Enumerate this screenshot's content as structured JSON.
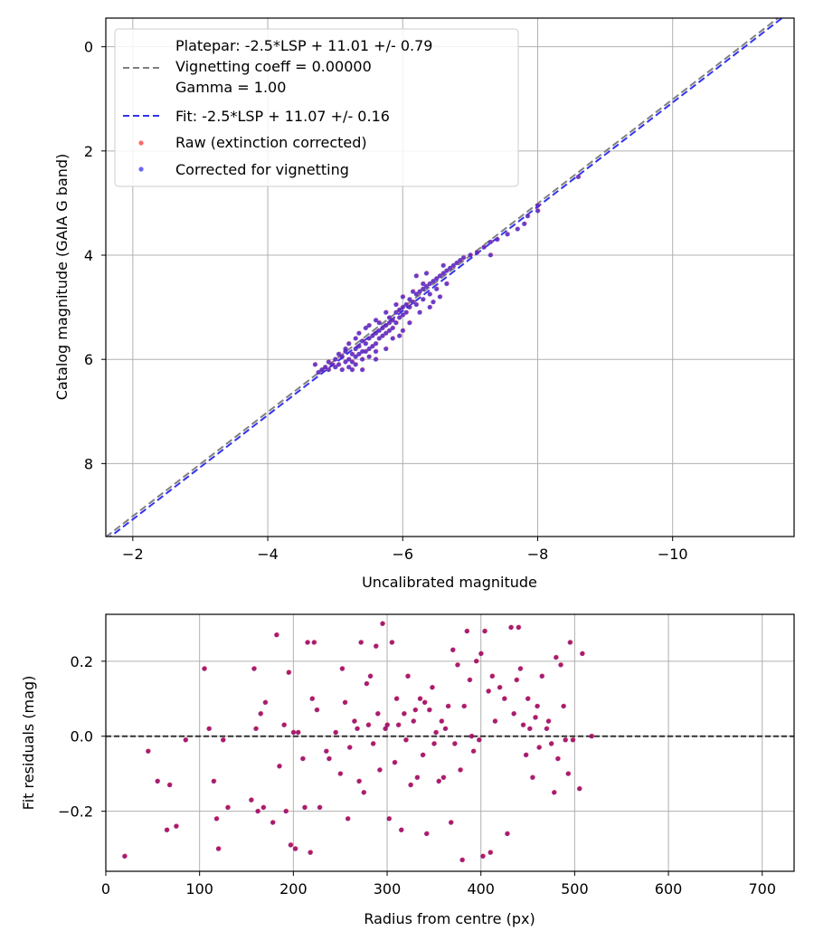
{
  "chart_data": [
    {
      "type": "scatter",
      "xlabel": "Uncalibrated magnitude",
      "ylabel": "Catalog magnitude (GAIA G band)",
      "xlim": [
        -1.6,
        -11.8
      ],
      "ylim": [
        9.4,
        -0.55
      ],
      "xticks": [
        -2,
        -4,
        -6,
        -8,
        -10
      ],
      "xtick_labels": [
        "−2",
        "−4",
        "−6",
        "−8",
        "−10"
      ],
      "yticks": [
        0,
        2,
        4,
        6,
        8
      ],
      "ytick_labels": [
        "0",
        "2",
        "4",
        "6",
        "8"
      ],
      "grid": true,
      "legend_position": "top-left",
      "legend": [
        {
          "kind": "line",
          "color": "#808080",
          "label_lines": [
            "Platepar: -2.5*LSP + 11.01 +/- 0.79",
            "Vignetting coeff = 0.00000",
            "Gamma = 1.00"
          ]
        },
        {
          "kind": "line",
          "color": "#3333ee",
          "label_lines": [
            "Fit: -2.5*LSP + 11.07 +/- 0.16"
          ]
        },
        {
          "kind": "marker",
          "color": "#ff4d4d",
          "label_lines": [
            "Raw (extinction corrected)"
          ]
        },
        {
          "kind": "marker",
          "color": "#4d4dff",
          "label_lines": [
            "Corrected for vignetting"
          ]
        }
      ],
      "lines": [
        {
          "name": "Platepar",
          "slope": 1.0,
          "intercept": 11.01,
          "color": "#808080"
        },
        {
          "name": "Fit",
          "slope": 1.0,
          "intercept": 11.07,
          "color": "#3333ee"
        }
      ],
      "points": [
        [
          -4.7,
          6.1
        ],
        [
          -4.75,
          6.25
        ],
        [
          -4.8,
          6.2
        ],
        [
          -4.85,
          6.15
        ],
        [
          -4.9,
          6.2
        ],
        [
          -4.95,
          6.1
        ],
        [
          -5.0,
          6.15
        ],
        [
          -5.0,
          6.0
        ],
        [
          -5.05,
          6.1
        ],
        [
          -5.1,
          6.2
        ],
        [
          -5.1,
          5.95
        ],
        [
          -5.15,
          6.05
        ],
        [
          -5.15,
          5.85
        ],
        [
          -5.2,
          6.0
        ],
        [
          -5.2,
          6.15
        ],
        [
          -5.25,
          5.9
        ],
        [
          -5.25,
          6.05
        ],
        [
          -5.3,
          5.8
        ],
        [
          -5.3,
          5.95
        ],
        [
          -5.3,
          6.1
        ],
        [
          -5.35,
          5.75
        ],
        [
          -5.35,
          5.9
        ],
        [
          -5.4,
          5.85
        ],
        [
          -5.4,
          5.65
        ],
        [
          -5.4,
          6.0
        ],
        [
          -5.45,
          5.7
        ],
        [
          -5.45,
          5.85
        ],
        [
          -5.5,
          5.6
        ],
        [
          -5.5,
          5.8
        ],
        [
          -5.5,
          5.95
        ],
        [
          -5.55,
          5.55
        ],
        [
          -5.55,
          5.75
        ],
        [
          -5.6,
          5.5
        ],
        [
          -5.6,
          5.7
        ],
        [
          -5.6,
          5.85
        ],
        [
          -5.65,
          5.45
        ],
        [
          -5.65,
          5.6
        ],
        [
          -5.7,
          5.4
        ],
        [
          -5.7,
          5.55
        ],
        [
          -5.75,
          5.35
        ],
        [
          -5.75,
          5.5
        ],
        [
          -5.8,
          5.3
        ],
        [
          -5.8,
          5.45
        ],
        [
          -5.8,
          5.2
        ],
        [
          -5.85,
          5.25
        ],
        [
          -5.85,
          5.4
        ],
        [
          -5.9,
          5.1
        ],
        [
          -5.9,
          5.3
        ],
        [
          -5.95,
          5.05
        ],
        [
          -5.95,
          5.2
        ],
        [
          -6.0,
          5.0
        ],
        [
          -6.0,
          5.15
        ],
        [
          -6.05,
          4.95
        ],
        [
          -6.05,
          5.1
        ],
        [
          -6.1,
          4.85
        ],
        [
          -6.1,
          5.0
        ],
        [
          -6.15,
          4.9
        ],
        [
          -6.2,
          4.75
        ],
        [
          -6.2,
          4.95
        ],
        [
          -6.25,
          4.7
        ],
        [
          -6.3,
          4.65
        ],
        [
          -6.3,
          4.85
        ],
        [
          -6.35,
          4.6
        ],
        [
          -6.4,
          4.55
        ],
        [
          -6.4,
          4.75
        ],
        [
          -6.45,
          4.5
        ],
        [
          -6.5,
          4.45
        ],
        [
          -6.5,
          4.65
        ],
        [
          -6.55,
          4.4
        ],
        [
          -6.6,
          4.35
        ],
        [
          -6.6,
          4.2
        ],
        [
          -6.65,
          4.3
        ],
        [
          -6.7,
          4.25
        ],
        [
          -6.75,
          4.2
        ],
        [
          -6.8,
          4.15
        ],
        [
          -6.85,
          4.1
        ],
        [
          -6.9,
          4.05
        ],
        [
          -7.0,
          4.0
        ],
        [
          -7.1,
          3.95
        ],
        [
          -7.2,
          3.85
        ],
        [
          -7.3,
          4.0
        ],
        [
          -7.3,
          3.75
        ],
        [
          -7.4,
          3.7
        ],
        [
          -7.55,
          3.6
        ],
        [
          -7.7,
          3.5
        ],
        [
          -7.8,
          3.4
        ],
        [
          -7.85,
          3.25
        ],
        [
          -8.0,
          3.05
        ],
        [
          -8.0,
          3.15
        ],
        [
          -8.6,
          2.5
        ],
        [
          -5.05,
          5.9
        ],
        [
          -5.2,
          5.7
        ],
        [
          -5.35,
          5.5
        ],
        [
          -5.45,
          5.4
        ],
        [
          -5.6,
          5.25
        ],
        [
          -5.75,
          5.1
        ],
        [
          -5.9,
          4.95
        ],
        [
          -6.0,
          4.8
        ],
        [
          -6.15,
          4.7
        ],
        [
          -6.3,
          4.55
        ],
        [
          -6.1,
          5.3
        ],
        [
          -5.85,
          5.6
        ],
        [
          -5.6,
          6.0
        ],
        [
          -5.4,
          6.2
        ],
        [
          -6.25,
          5.1
        ],
        [
          -6.45,
          4.9
        ],
        [
          -6.0,
          5.45
        ],
        [
          -6.35,
          4.35
        ],
        [
          -5.5,
          5.35
        ],
        [
          -5.3,
          5.6
        ],
        [
          -5.15,
          5.8
        ],
        [
          -4.9,
          6.05
        ],
        [
          -6.55,
          4.8
        ],
        [
          -6.2,
          4.4
        ],
        [
          -5.75,
          5.8
        ],
        [
          -5.95,
          5.55
        ],
        [
          -5.65,
          5.3
        ],
        [
          -5.25,
          6.2
        ],
        [
          -6.65,
          4.55
        ],
        [
          -6.4,
          5.0
        ]
      ]
    },
    {
      "type": "scatter",
      "xlabel": "Radius from centre (px)",
      "ylabel": "Fit residuals (mag)",
      "xlim": [
        0,
        734
      ],
      "ylim": [
        -0.36,
        0.325
      ],
      "xticks": [
        0,
        100,
        200,
        300,
        400,
        500,
        600,
        700
      ],
      "xtick_labels": [
        "0",
        "100",
        "200",
        "300",
        "400",
        "500",
        "600",
        "700"
      ],
      "yticks": [
        0.2,
        0.0,
        -0.2
      ],
      "ytick_labels": [
        "0.2",
        "0.0",
        "−0.2"
      ],
      "grid": true,
      "reference_line": 0.0,
      "points": [
        [
          20,
          -0.32
        ],
        [
          45,
          -0.04
        ],
        [
          55,
          -0.12
        ],
        [
          65,
          -0.25
        ],
        [
          68,
          -0.13
        ],
        [
          75,
          -0.24
        ],
        [
          85,
          -0.01
        ],
        [
          105,
          0.18
        ],
        [
          110,
          0.02
        ],
        [
          115,
          -0.12
        ],
        [
          118,
          -0.22
        ],
        [
          120,
          -0.3
        ],
        [
          125,
          -0.01
        ],
        [
          130,
          -0.19
        ],
        [
          155,
          -0.17
        ],
        [
          158,
          0.18
        ],
        [
          160,
          0.02
        ],
        [
          162,
          -0.2
        ],
        [
          165,
          0.06
        ],
        [
          168,
          -0.19
        ],
        [
          170,
          0.09
        ],
        [
          178,
          -0.23
        ],
        [
          182,
          0.27
        ],
        [
          185,
          -0.08
        ],
        [
          190,
          0.03
        ],
        [
          192,
          -0.2
        ],
        [
          195,
          0.17
        ],
        [
          197,
          -0.29
        ],
        [
          200,
          0.01
        ],
        [
          202,
          -0.3
        ],
        [
          205,
          0.01
        ],
        [
          210,
          -0.06
        ],
        [
          212,
          -0.19
        ],
        [
          215,
          0.25
        ],
        [
          218,
          -0.31
        ],
        [
          220,
          0.1
        ],
        [
          222,
          0.25
        ],
        [
          225,
          0.07
        ],
        [
          228,
          -0.19
        ],
        [
          235,
          -0.04
        ],
        [
          238,
          -0.06
        ],
        [
          245,
          0.01
        ],
        [
          250,
          -0.1
        ],
        [
          252,
          0.18
        ],
        [
          255,
          0.09
        ],
        [
          258,
          -0.22
        ],
        [
          260,
          -0.03
        ],
        [
          265,
          0.04
        ],
        [
          268,
          0.02
        ],
        [
          270,
          -0.12
        ],
        [
          272,
          0.25
        ],
        [
          275,
          -0.15
        ],
        [
          278,
          0.14
        ],
        [
          280,
          0.03
        ],
        [
          282,
          0.16
        ],
        [
          285,
          -0.02
        ],
        [
          288,
          0.24
        ],
        [
          290,
          0.06
        ],
        [
          292,
          -0.09
        ],
        [
          295,
          0.3
        ],
        [
          298,
          0.02
        ],
        [
          300,
          0.03
        ],
        [
          302,
          -0.22
        ],
        [
          305,
          0.25
        ],
        [
          308,
          -0.07
        ],
        [
          310,
          0.1
        ],
        [
          312,
          0.03
        ],
        [
          315,
          -0.25
        ],
        [
          318,
          0.06
        ],
        [
          320,
          -0.01
        ],
        [
          322,
          0.16
        ],
        [
          325,
          -0.13
        ],
        [
          328,
          0.04
        ],
        [
          330,
          0.07
        ],
        [
          332,
          -0.11
        ],
        [
          335,
          0.1
        ],
        [
          338,
          -0.05
        ],
        [
          340,
          0.09
        ],
        [
          342,
          -0.26
        ],
        [
          345,
          0.07
        ],
        [
          348,
          0.13
        ],
        [
          350,
          -0.02
        ],
        [
          352,
          0.01
        ],
        [
          355,
          -0.12
        ],
        [
          358,
          0.04
        ],
        [
          360,
          -0.11
        ],
        [
          362,
          0.02
        ],
        [
          365,
          0.08
        ],
        [
          368,
          -0.23
        ],
        [
          370,
          0.23
        ],
        [
          372,
          -0.02
        ],
        [
          375,
          0.19
        ],
        [
          378,
          -0.09
        ],
        [
          380,
          -0.33
        ],
        [
          382,
          0.08
        ],
        [
          385,
          0.28
        ],
        [
          388,
          0.15
        ],
        [
          390,
          0.0
        ],
        [
          392,
          -0.04
        ],
        [
          395,
          0.2
        ],
        [
          398,
          -0.01
        ],
        [
          400,
          0.22
        ],
        [
          402,
          -0.32
        ],
        [
          404,
          0.28
        ],
        [
          408,
          0.12
        ],
        [
          410,
          -0.31
        ],
        [
          412,
          0.16
        ],
        [
          415,
          0.04
        ],
        [
          420,
          0.13
        ],
        [
          425,
          0.1
        ],
        [
          428,
          -0.26
        ],
        [
          432,
          0.29
        ],
        [
          435,
          0.06
        ],
        [
          438,
          0.15
        ],
        [
          440,
          0.29
        ],
        [
          442,
          0.18
        ],
        [
          445,
          0.03
        ],
        [
          448,
          -0.05
        ],
        [
          450,
          0.1
        ],
        [
          452,
          0.02
        ],
        [
          455,
          -0.11
        ],
        [
          458,
          0.05
        ],
        [
          460,
          0.08
        ],
        [
          462,
          -0.03
        ],
        [
          465,
          0.16
        ],
        [
          470,
          0.02
        ],
        [
          472,
          0.04
        ],
        [
          475,
          -0.02
        ],
        [
          478,
          -0.15
        ],
        [
          480,
          0.21
        ],
        [
          482,
          -0.06
        ],
        [
          485,
          0.19
        ],
        [
          488,
          0.08
        ],
        [
          490,
          -0.01
        ],
        [
          493,
          -0.1
        ],
        [
          495,
          0.25
        ],
        [
          498,
          -0.01
        ],
        [
          505,
          -0.14
        ],
        [
          508,
          0.22
        ],
        [
          518,
          0.0
        ]
      ]
    }
  ]
}
